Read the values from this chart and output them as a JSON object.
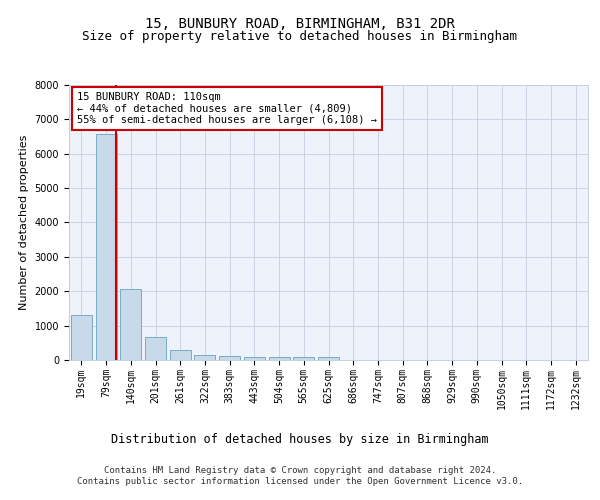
{
  "title": "15, BUNBURY ROAD, BIRMINGHAM, B31 2DR",
  "subtitle": "Size of property relative to detached houses in Birmingham",
  "xlabel": "Distribution of detached houses by size in Birmingham",
  "ylabel": "Number of detached properties",
  "bar_color": "#c8d9ea",
  "bar_edge_color": "#7aaac8",
  "background_color": "#eef2fb",
  "grid_color": "#c5cfe0",
  "categories": [
    "19sqm",
    "79sqm",
    "140sqm",
    "201sqm",
    "261sqm",
    "322sqm",
    "383sqm",
    "443sqm",
    "504sqm",
    "565sqm",
    "625sqm",
    "686sqm",
    "747sqm",
    "807sqm",
    "868sqm",
    "929sqm",
    "990sqm",
    "1050sqm",
    "1111sqm",
    "1172sqm",
    "1232sqm"
  ],
  "values": [
    1310,
    6560,
    2070,
    660,
    290,
    150,
    110,
    80,
    85,
    85,
    75,
    0,
    0,
    0,
    0,
    0,
    0,
    0,
    0,
    0,
    0
  ],
  "ylim": [
    0,
    8000
  ],
  "yticks": [
    0,
    1000,
    2000,
    3000,
    4000,
    5000,
    6000,
    7000,
    8000
  ],
  "property_line_color": "#cc0000",
  "property_line_x": 1.42,
  "annotation_text": "15 BUNBURY ROAD: 110sqm\n← 44% of detached houses are smaller (4,809)\n55% of semi-detached houses are larger (6,108) →",
  "annotation_box_color": "#ffffff",
  "annotation_box_edge": "#cc0000",
  "footer_line1": "Contains HM Land Registry data © Crown copyright and database right 2024.",
  "footer_line2": "Contains public sector information licensed under the Open Government Licence v3.0.",
  "title_fontsize": 10,
  "subtitle_fontsize": 9,
  "ylabel_fontsize": 8,
  "xlabel_fontsize": 8.5,
  "tick_fontsize": 7,
  "annotation_fontsize": 7.5,
  "footer_fontsize": 6.5
}
